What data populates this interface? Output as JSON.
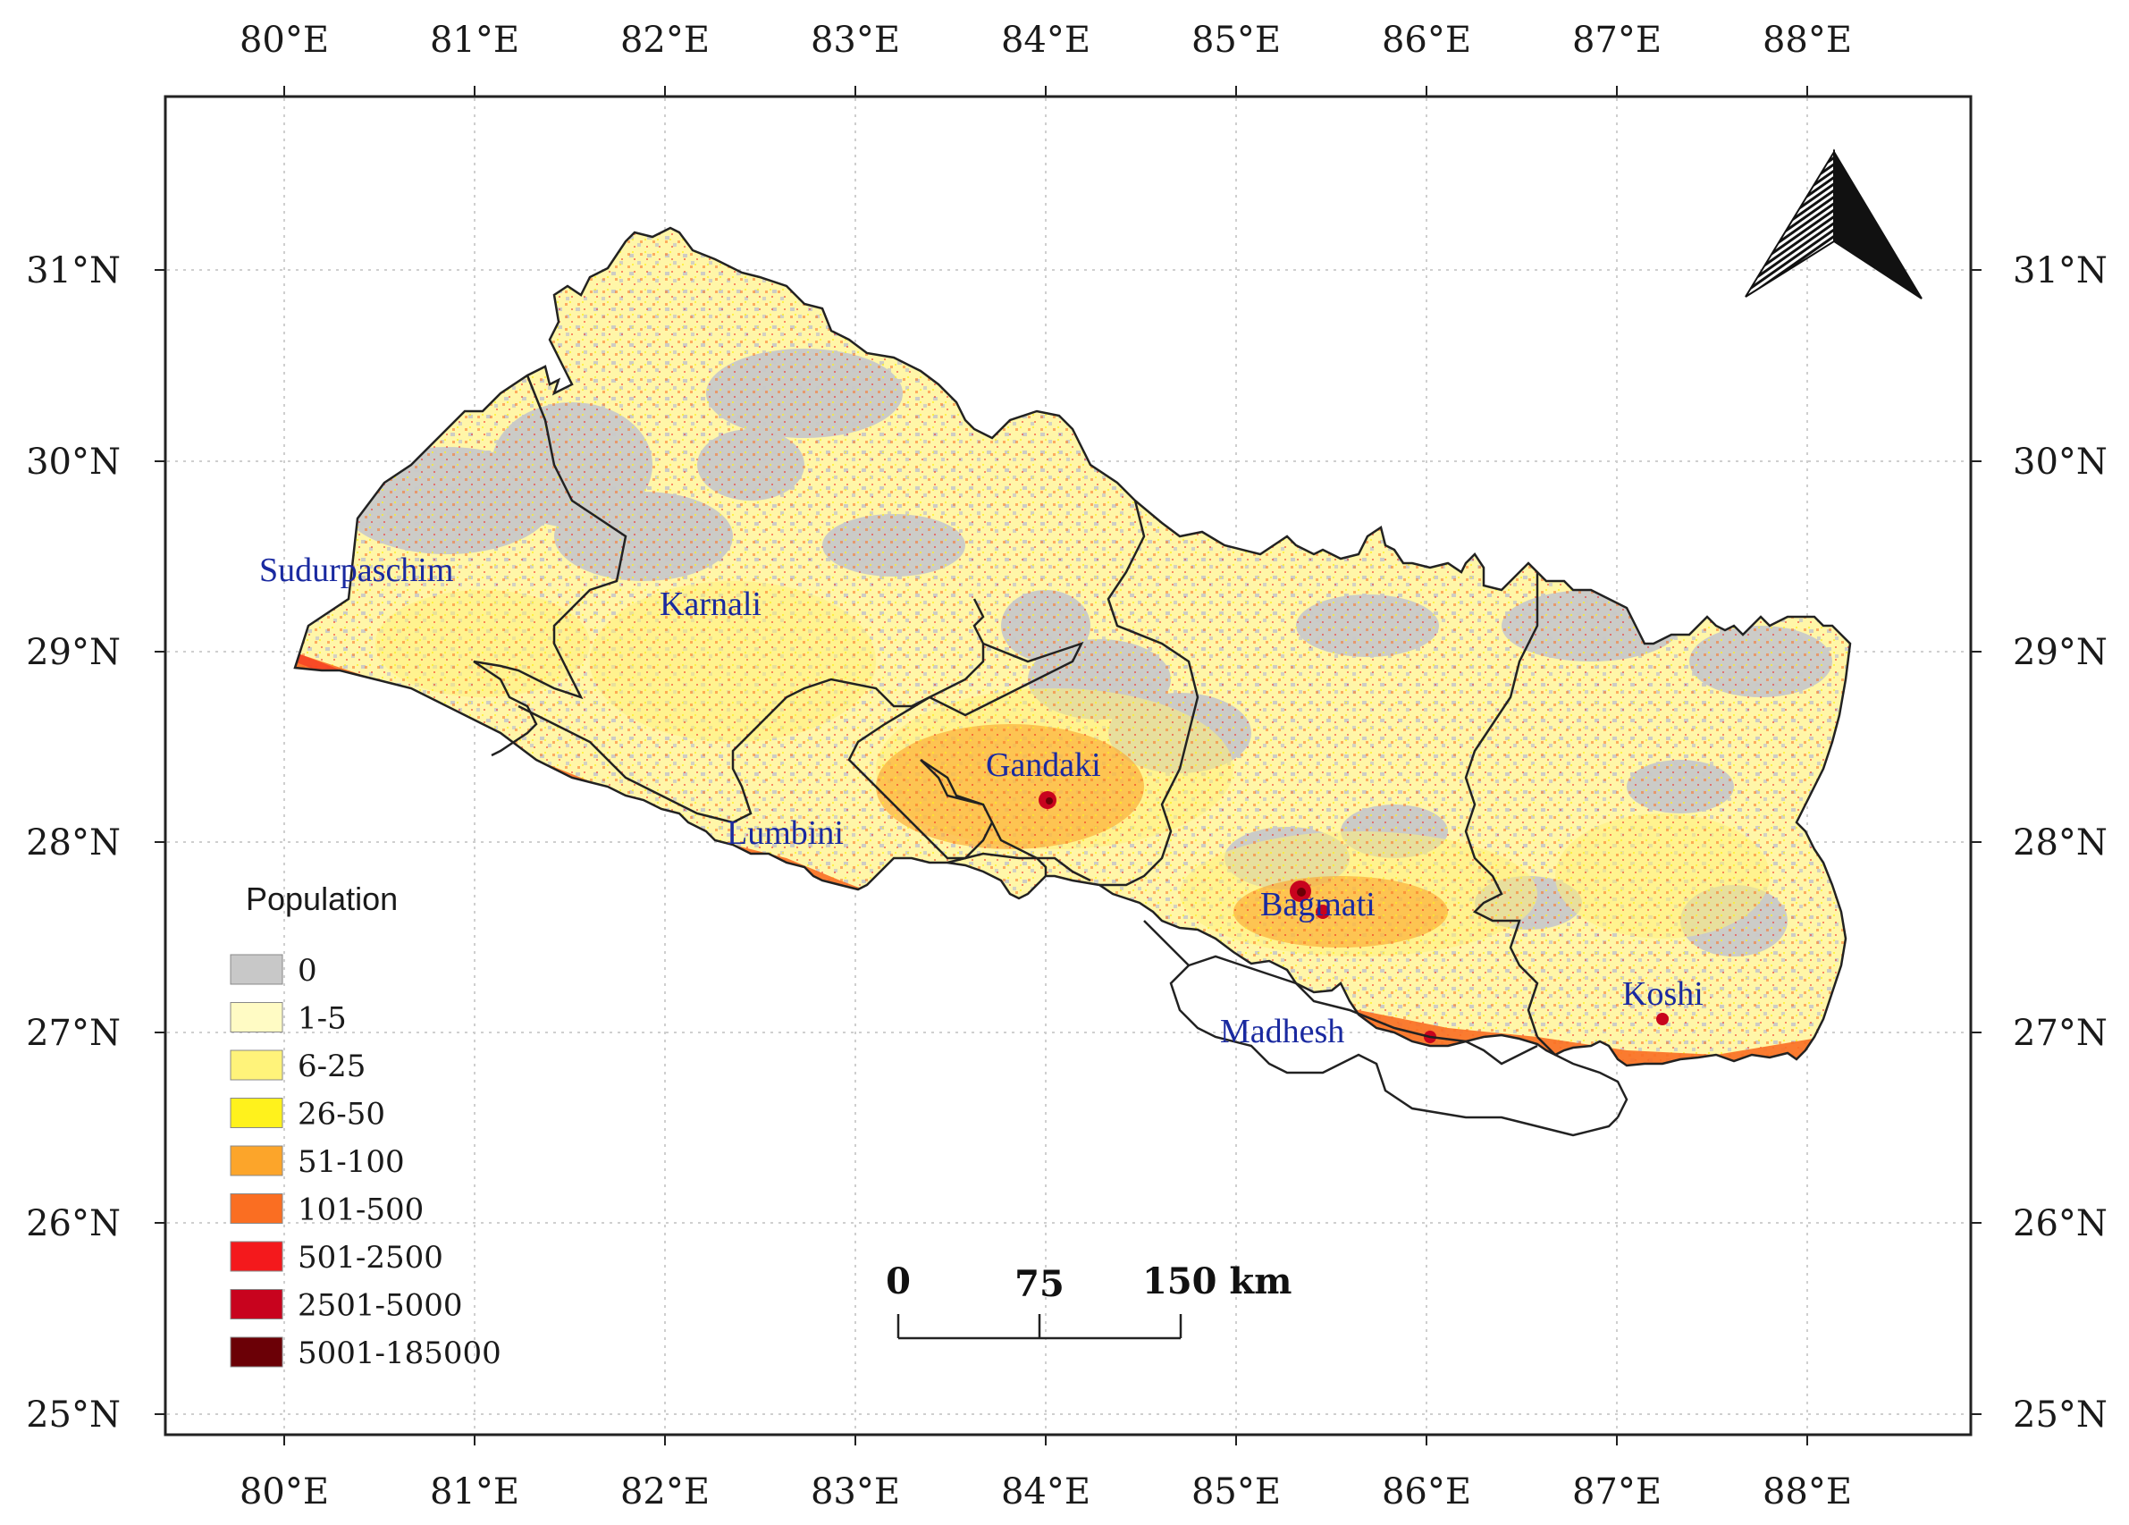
{
  "axes": {
    "lon_ticks": [
      "80°E",
      "81°E",
      "82°E",
      "83°E",
      "84°E",
      "85°E",
      "86°E",
      "87°E",
      "88°E"
    ],
    "lat_ticks": [
      "31°N",
      "30°N",
      "29°N",
      "28°N",
      "27°N",
      "26°N",
      "25°N"
    ]
  },
  "regions": [
    "Sudurpaschim",
    "Karnali",
    "Gandaki",
    "Lumbini",
    "Bagmati",
    "Madhesh",
    "Koshi"
  ],
  "legend": {
    "title": "Population",
    "classes": [
      {
        "label": "0",
        "color": "#c8c8c8"
      },
      {
        "label": "1-5",
        "color": "#fffbc4"
      },
      {
        "label": "6-25",
        "color": "#fff37a"
      },
      {
        "label": "26-50",
        "color": "#fff21c"
      },
      {
        "label": "51-100",
        "color": "#fca52a"
      },
      {
        "label": "101-500",
        "color": "#fa6e22"
      },
      {
        "label": "501-2500",
        "color": "#f4191c"
      },
      {
        "label": "2501-5000",
        "color": "#c8031e"
      },
      {
        "label": "5001-185000",
        "color": "#6b0006"
      }
    ]
  },
  "scale_bar": {
    "labels": [
      "0",
      "75",
      "150 km"
    ]
  },
  "north_arrow": {
    "icon": "north-arrow-icon"
  }
}
